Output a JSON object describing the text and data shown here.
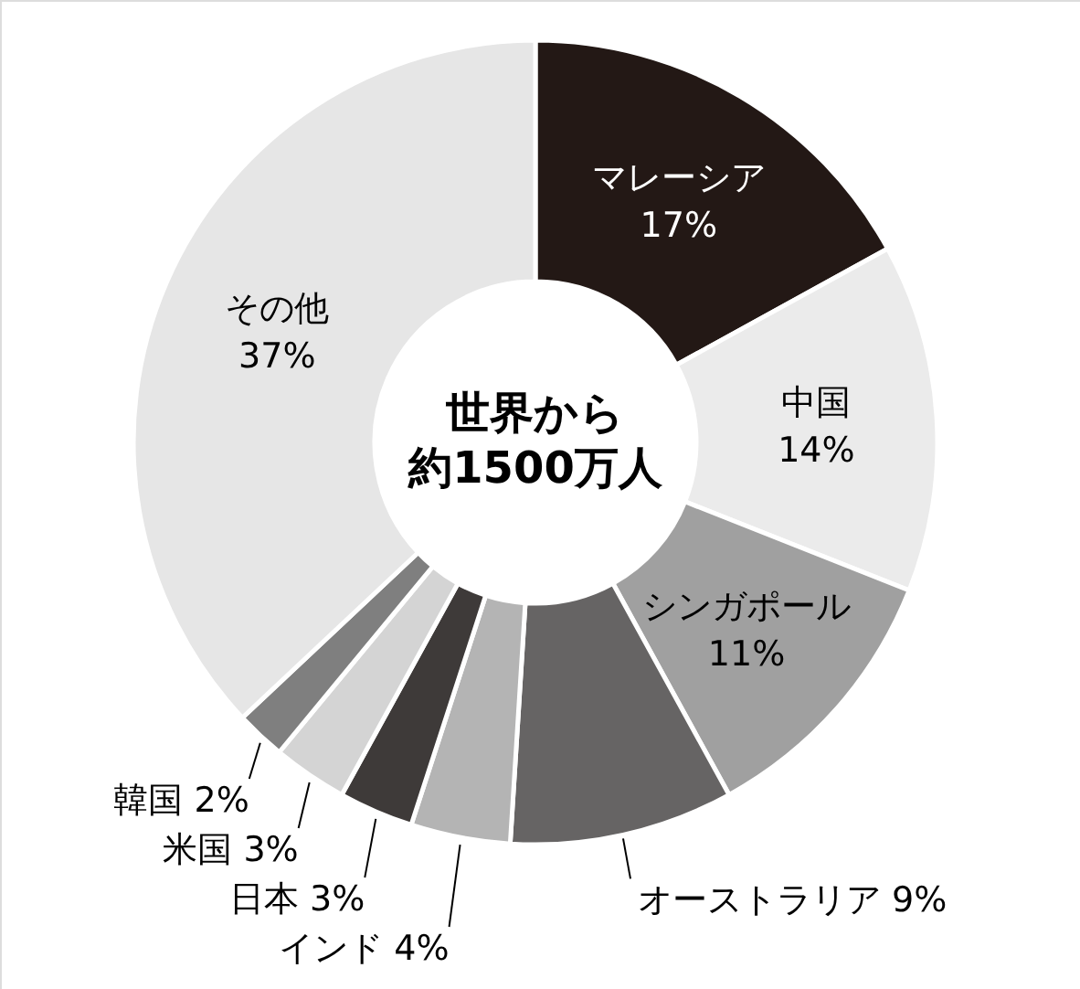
{
  "chart_data": {
    "type": "donut",
    "categories": [
      "マレーシア",
      "中国",
      "シンガポール",
      "オーストラリア",
      "インド",
      "日本",
      "米国",
      "韓国",
      "その他"
    ],
    "values": [
      17,
      14,
      11,
      9,
      4,
      3,
      3,
      2,
      37
    ],
    "value_labels": [
      "17%",
      "14%",
      "11%",
      "9%",
      "4%",
      "3%",
      "3%",
      "2%",
      "37%"
    ],
    "colors": [
      "#231815",
      "#ebebeb",
      "#a0a0a0",
      "#666464",
      "#b4b4b4",
      "#3e3a39",
      "#d4d4d4",
      "#7f7f7f",
      "#e6e6e6"
    ],
    "annotations": [
      "世界から",
      "約1500万人"
    ]
  }
}
